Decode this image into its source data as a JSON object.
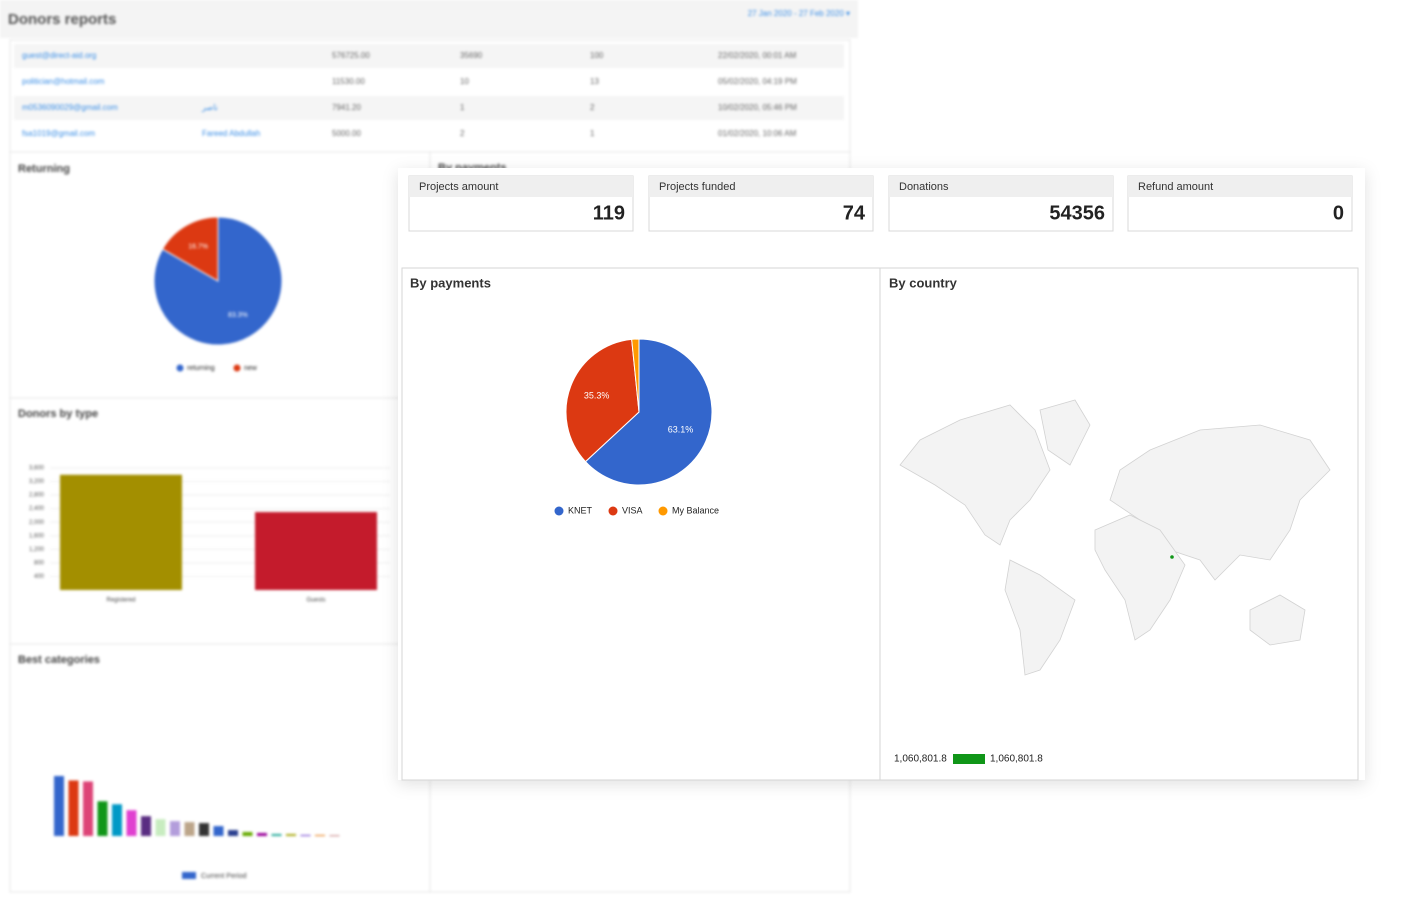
{
  "background": {
    "header": {
      "title": "Donors reports",
      "date_range": "27 Jan 2020 - 27 Feb 2020 ▾"
    },
    "table": {
      "rows": [
        [
          "guest@direct-aid.org",
          "576725.00",
          "35690",
          "100",
          "22/02/2020, 00:01 AM"
        ],
        [
          "politician@hotmail.com",
          "11530.00",
          "10",
          "13",
          "05/02/2020, 04:19 PM"
        ],
        [
          "m0536090029@gmail.com",
          "ناصر",
          "7941.20",
          "1",
          "2",
          "10/02/2020, 05:46 PM"
        ],
        [
          "fsa1019@gmail.com",
          "Fareed Abdullah",
          "5000.00",
          "2",
          "1",
          "01/02/2020, 10:06 AM"
        ]
      ]
    },
    "returning": {
      "title": "Returning",
      "categories": [
        "returning",
        "new"
      ],
      "values": [
        83.3,
        16.7
      ],
      "value_labels": [
        "83.3%",
        "16.7%"
      ],
      "colors": [
        "#3366cc",
        "#dc3912"
      ]
    },
    "payments_title": "By payments",
    "donors_by_type": {
      "title": "Donors by type",
      "categories": [
        "Registered",
        "Guests"
      ],
      "values": [
        3400,
        2300
      ],
      "colors": [
        "#a38f00",
        "#c41b2c"
      ],
      "ylim": [
        0,
        3600
      ],
      "yticks": [
        400,
        800,
        {
          "value": 1200,
          "label": "1,200"
        },
        {
          "value": 1600,
          "label": "1,600"
        },
        {
          "value": 2000,
          "label": "2,000"
        },
        {
          "value": 2400,
          "label": "2,400"
        },
        {
          "value": 2800,
          "label": "2,800"
        },
        {
          "value": 3200,
          "label": "3,200"
        },
        {
          "value": 3600,
          "label": "3,600"
        }
      ]
    },
    "best_categories": {
      "title": "Best categories",
      "legend": "Current Period",
      "legend_color": "#3366cc",
      "ylim": [
        0,
        250000
      ],
      "values": [
        121000,
        112000,
        110000,
        70000,
        64000,
        52000,
        40000,
        34000,
        30000,
        28000,
        26000,
        20000,
        12000,
        8000,
        6000,
        4000,
        4000,
        2000,
        2000,
        1000
      ],
      "colors": [
        "#3366cc",
        "#dc3912",
        "#dd4477",
        "#109618",
        "#0099c6",
        "#e040d0",
        "#5a2d82",
        "#c8ecc0",
        "#b39ddb",
        "#bca58a",
        "#333333",
        "#3366cc",
        "#2a3f8f",
        "#66aa00",
        "#990099",
        "#22aa99",
        "#aaaa11",
        "#6633cc",
        "#e67300",
        "#8b0707"
      ]
    }
  },
  "stats": [
    {
      "label": "Projects amount",
      "value": 119
    },
    {
      "label": "Projects funded",
      "value": 74
    },
    {
      "label": "Donations",
      "value": 54356
    },
    {
      "label": "Refund amount",
      "value": 0
    }
  ],
  "payments": {
    "title": "By payments",
    "categories": [
      "KNET",
      "VISA",
      "My Balance"
    ],
    "values": [
      63.1,
      35.3,
      1.6
    ],
    "value_labels": [
      "63.1%",
      "35.3%",
      null
    ],
    "colors": [
      "#3366cc",
      "#dc3912",
      "#ff9900"
    ]
  },
  "country": {
    "title": "By country",
    "min": {
      "value": 1060801.8,
      "label": "1,060,801.8"
    },
    "max": {
      "value": 1060801.8,
      "label": "1,060,801.8"
    },
    "color": "#109618"
  }
}
